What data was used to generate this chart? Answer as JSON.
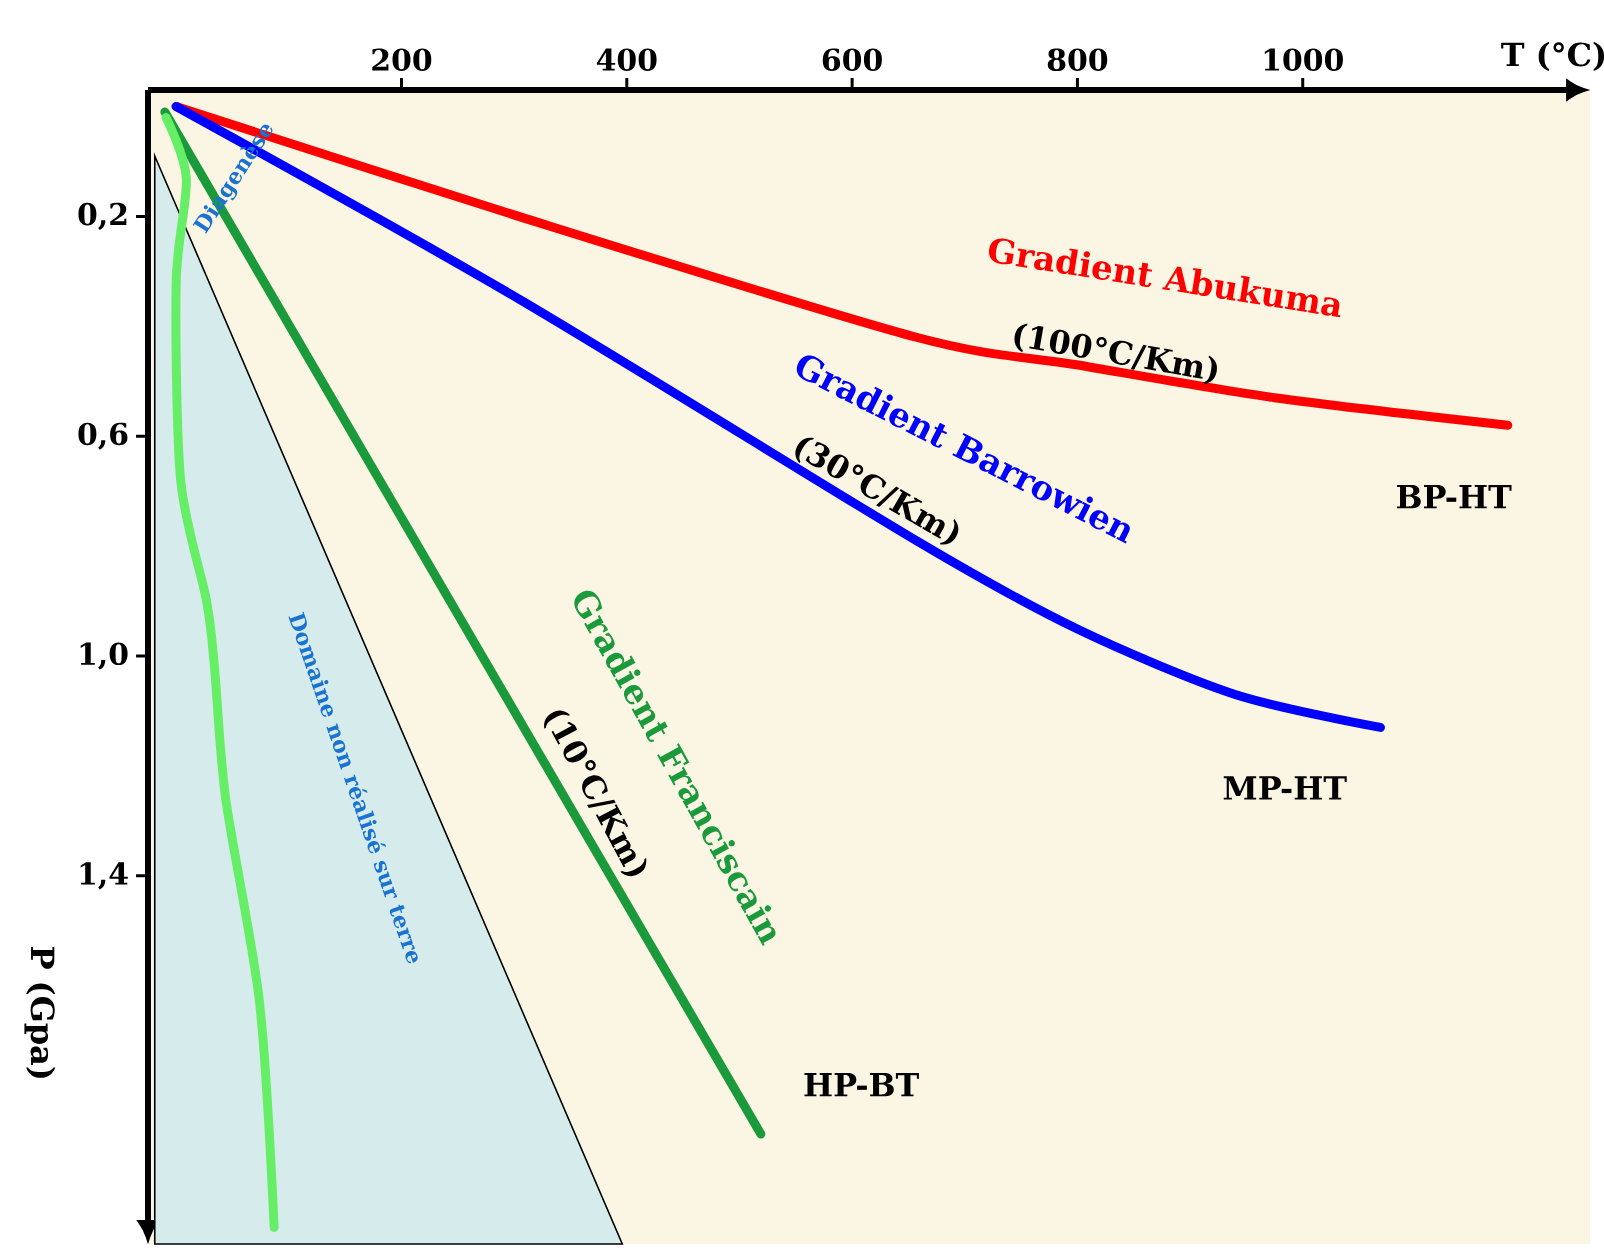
{
  "chart_data": {
    "type": "line",
    "xlabel": "T (°C)",
    "ylabel": "P (Gpa)",
    "xlim": [
      -25,
      1255
    ],
    "ylim": [
      2.07,
      -0.03
    ],
    "xticks": [
      200,
      400,
      600,
      800,
      1000
    ],
    "yticks": [
      {
        "value": 0.2,
        "label": "0,2"
      },
      {
        "value": 0.6,
        "label": "0,6"
      },
      {
        "value": 1.0,
        "label": "1,0"
      },
      {
        "value": 1.4,
        "label": "1,4"
      }
    ],
    "marker": "none",
    "line_style": "solid",
    "series": [
      {
        "type": "area",
        "color": "#d6ecec",
        "x": [
          -19,
          396
        ],
        "values": [
          0.09,
          2.07
        ]
      },
      {
        "name": "Gradient Abukuma",
        "color": "#ff0000",
        "x": [
          0,
          304,
          657,
          799,
          975,
          1182
        ],
        "values": [
          0,
          0.2,
          0.42,
          0.47,
          0.53,
          0.58
        ]
      },
      {
        "name": "Gradient Barrowien",
        "color": "#0000ff",
        "x": [
          0,
          304,
          657,
          799,
          940,
          1069
        ],
        "values": [
          0,
          0.35,
          0.79,
          0.95,
          1.07,
          1.13
        ]
      },
      {
        "name": "Gradient Franciscain",
        "color": "#1a9a3a",
        "x": [
          -10,
          519
        ],
        "values": [
          0.01,
          1.87
        ]
      },
      {
        "color": "#66ee66",
        "x": [
          -9,
          9,
          0,
          4,
          27,
          34,
          44,
          74,
          87
        ],
        "values": [
          0.02,
          0.13,
          0.32,
          0.68,
          0.9,
          1.02,
          1.26,
          1.63,
          2.04
        ]
      }
    ],
    "annotations": [
      "(100°C/Km)",
      "(30°C/Km)",
      "(10°C/Km)",
      "BP-HT",
      "MP-HT",
      "HP-BT",
      "Diagenèse",
      "Domaine non réalisé sur terre"
    ]
  }
}
